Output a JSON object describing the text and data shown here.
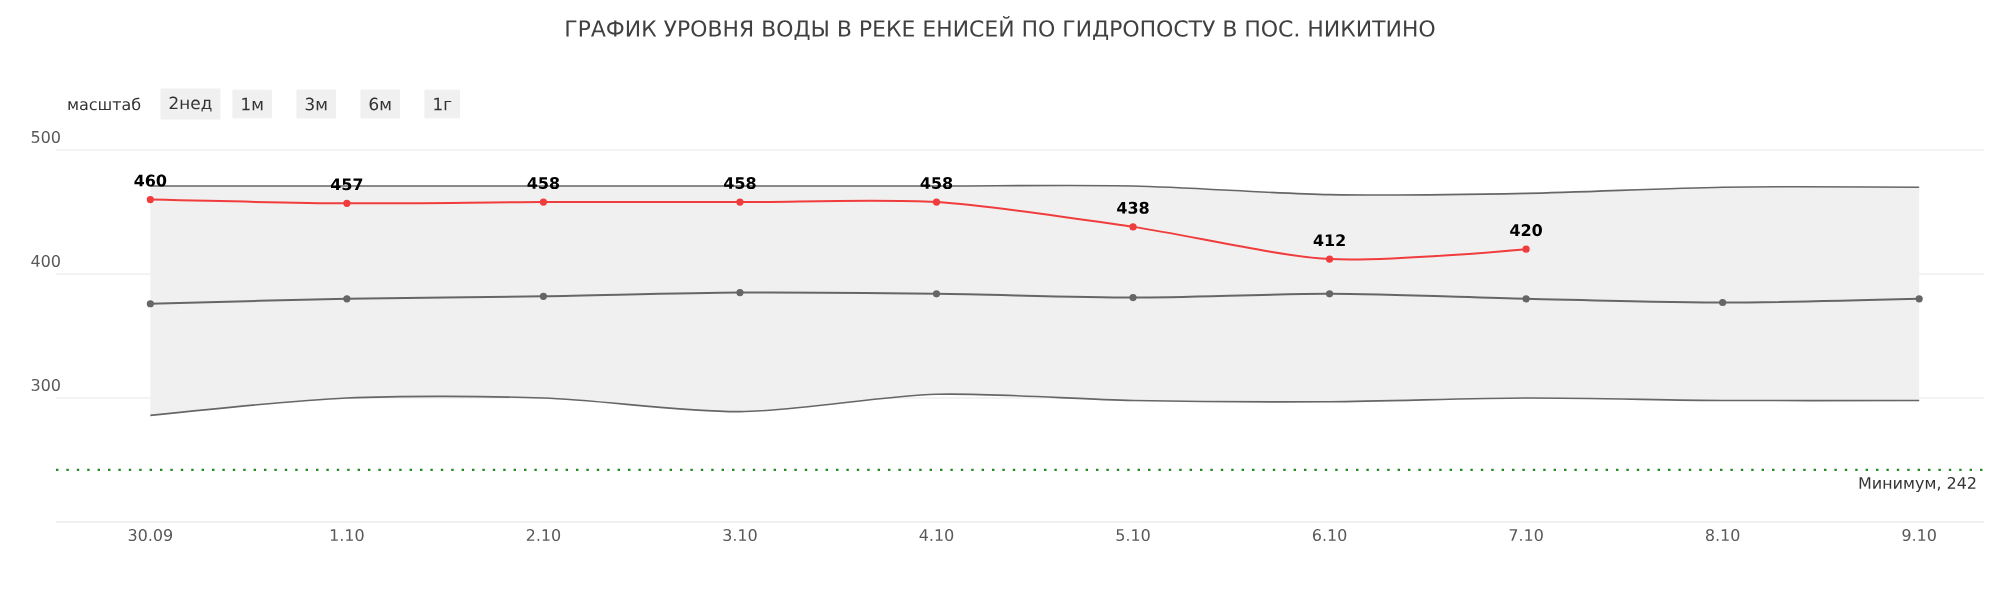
{
  "chart_data": {
    "type": "line",
    "title": "ГРАФИК УРОВНЯ ВОДЫ В РЕКЕ ЕНИСЕЙ ПО ГИДРОПОСТУ В ПОС. НИКИТИНО",
    "categories": [
      "30.09",
      "1.10",
      "2.10",
      "3.10",
      "4.10",
      "5.10",
      "6.10",
      "7.10",
      "8.10",
      "9.10"
    ],
    "series": [
      {
        "color": "#666666",
        "values": [
          376,
          380,
          382,
          385,
          384,
          381,
          384,
          380,
          377,
          380
        ],
        "lower": [
          286,
          300,
          300,
          289,
          303,
          298,
          297,
          300,
          298,
          298
        ],
        "upper": [
          471,
          471,
          471,
          471,
          471,
          471,
          464,
          465,
          470,
          470
        ]
      },
      {
        "color": "#666666",
        "marker": "none",
        "values": [
          286,
          300,
          300,
          289,
          303,
          298,
          297,
          300,
          298,
          298
        ]
      },
      {
        "color": "#666666",
        "marker": "none",
        "values": [
          471,
          471,
          471,
          471,
          471,
          471,
          464,
          465,
          470,
          470
        ]
      },
      {
        "color": "#f03c3c",
        "values": [
          460,
          457,
          458,
          458,
          458,
          438,
          412,
          420,
          null,
          null
        ],
        "data_labels": true
      }
    ],
    "ylim": [
      200,
      500
    ],
    "yticks": [
      300,
      400,
      500
    ],
    "grid": "y",
    "marker": "circle",
    "line_style": "solid",
    "ref_lines": [
      {
        "axis": "y",
        "value": 242,
        "label": "Минимум, 242",
        "color": "#228b22",
        "line_style": "dotted"
      }
    ],
    "annotations": [
      "масштаб",
      "2нед",
      "1м",
      "3м",
      "6м",
      "1г"
    ]
  }
}
